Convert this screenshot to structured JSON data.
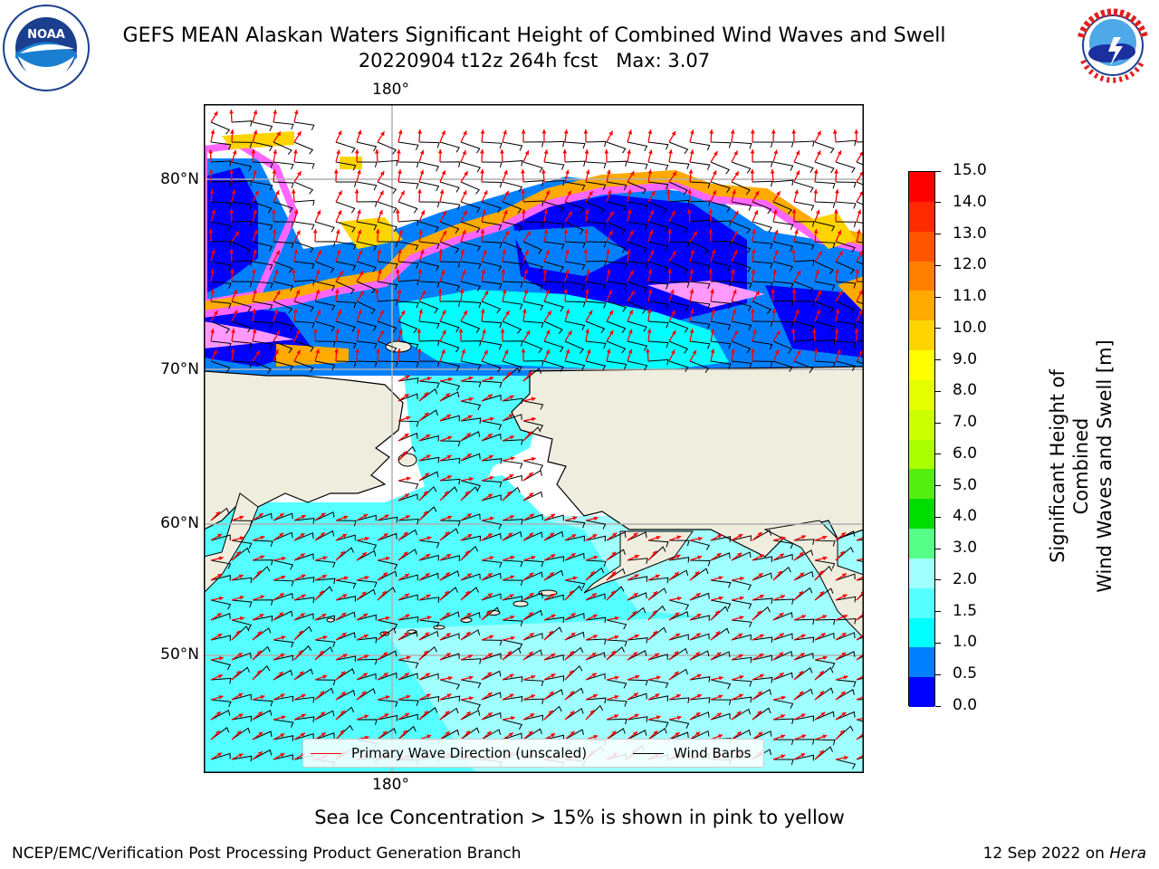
{
  "title": {
    "line1": "GEFS MEAN Alaskan Waters Significant Height of Combined Wind Waves and Swell",
    "line2": "20220904 t12z 264h fcst   Max: 3.07"
  },
  "logos": {
    "noaa": {
      "text": "NOAA",
      "ring_text": "NATIONAL OCEANIC AND ATMOSPHERIC ADMINISTRATION · U.S. DEPARTMENT OF COMMERCE"
    },
    "nws": {
      "ring_text": "NATIONAL WEATHER SERVICE"
    }
  },
  "map": {
    "lon_labels": [
      "180°",
      "180°"
    ],
    "lat_labels": [
      "80°N",
      "70°N",
      "60°N",
      "50°N"
    ],
    "colors": {
      "land": "#efedde",
      "open_water": "#55ffff",
      "light_water": "#a0ffff",
      "ice_edge": "#ff66ff",
      "gridline": "#b0b0b0"
    }
  },
  "legend": {
    "primary_wave_label": "Primary Wave Direction (unscaled)",
    "wind_barbs_label": "Wind Barbs",
    "primary_wave_color": "#ff0000",
    "wind_barbs_color": "#000000"
  },
  "colorbar": {
    "title_line1": "Significant Height of Combined",
    "title_line2": "Wind Waves and Swell [m]",
    "ticks": [
      "15.0",
      "14.0",
      "13.0",
      "12.0",
      "11.0",
      "10.0",
      "9.0",
      "8.0",
      "7.0",
      "6.0",
      "5.0",
      "4.0",
      "3.0",
      "2.0",
      "1.5",
      "1.0",
      "0.5",
      "0.0"
    ],
    "bins_top_to_bottom": [
      "#ff0000",
      "#ff2a00",
      "#ff5500",
      "#ff8000",
      "#ffaa00",
      "#ffd400",
      "#ffff00",
      "#e6ff00",
      "#ccff00",
      "#aaff00",
      "#55ee11",
      "#00dd00",
      "#55ff88",
      "#a0ffff",
      "#55ffff",
      "#00ffff",
      "#0080ff",
      "#0000ff"
    ]
  },
  "sea_ice_note": "Sea Ice Concentration > 15% is shown in pink to yellow",
  "footer": {
    "left": "NCEP/EMC/Verification Post Processing Product Generation Branch",
    "right_prefix": "12 Sep 2022 on ",
    "right_host": "Hera"
  }
}
